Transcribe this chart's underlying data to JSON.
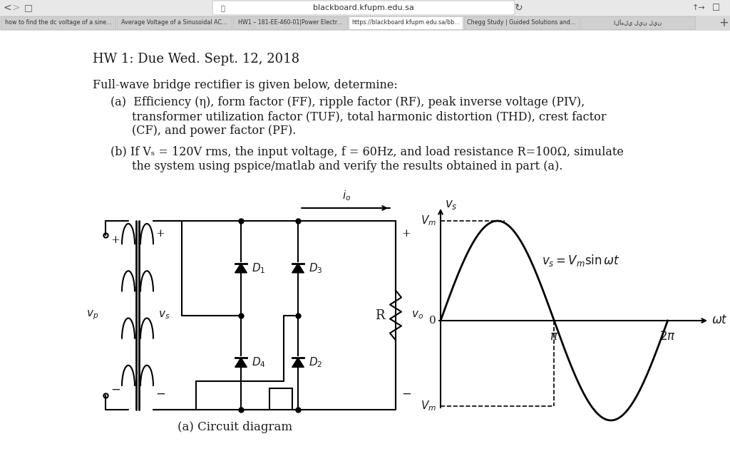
{
  "bg_color": "#ffffff",
  "text_color": "#1a1a1a",
  "title_text": "HW 1: Due Wed. Sept. 12, 2018",
  "body_line1": "Full-wave bridge rectifier is given below, determine:",
  "body_a1": "(a)  Efficiency (η), form factor (FF), ripple factor (RF), peak inverse voltage (PIV),",
  "body_a2": "       transformer utilization factor (TUF), total harmonic distortion (THD), crest factor",
  "body_a3": "       (CF), and power factor (PF).",
  "body_b1": "(b) If Vₛ = 120V rms, the input voltage, f = 60Hz, and load resistance R=100Ω, simulate",
  "body_b2": "       the system using pspice/matlab and verify the results obtained in part (a).",
  "caption": "(a) Circuit diagram",
  "tabs": [
    "how to find the dc voltage of a sine...",
    "Average Voltage of a Sinusoidal AC...",
    "HW1 – 181-EE-460-01|Power Electr...",
    "https://blackboard.kfupm.edu.sa/bb...",
    "Chegg Study | Guided Solutions and...",
    "الأهلي لين لين"
  ],
  "url": "blackboard.kfupm.edu.sa",
  "title_fs": 13,
  "body_fs": 11.5
}
